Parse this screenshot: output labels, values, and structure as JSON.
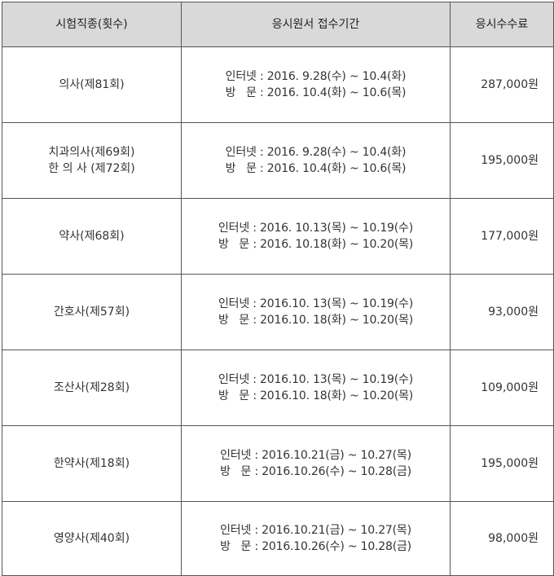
{
  "table": {
    "headers": [
      "시험직종(횟수)",
      "응시원서 접수기간",
      "응시수수료"
    ],
    "rows": [
      {
        "exam": [
          "의사(제81회)"
        ],
        "internet": "인터넷 : 2016. 9.28(수) ~ 10.4(화)",
        "visit": "방   문 : 2016. 10.4(화) ~ 10.6(목)",
        "fee": "287,000원"
      },
      {
        "exam": [
          "치과의사(제69회)",
          "한 의 사 (제72회)"
        ],
        "internet": "인터넷 : 2016. 9.28(수) ~ 10.4(화)",
        "visit": "방   문 : 2016. 10.4(화) ~ 10.6(목)",
        "fee": "195,000원"
      },
      {
        "exam": [
          "약사(제68회)"
        ],
        "internet": "인터넷 : 2016. 10.13(목) ~ 10.19(수)",
        "visit": "방   문 : 2016. 10.18(화) ~ 10.20(목)",
        "fee": "177,000원"
      },
      {
        "exam": [
          "간호사(제57회)"
        ],
        "internet": "인터넷 : 2016.10. 13(목) ~ 10.19(수)",
        "visit": "방   문 : 2016.10. 18(화) ~ 10.20(목)",
        "fee": "93,000원"
      },
      {
        "exam": [
          "조산사(제28회)"
        ],
        "internet": "인터넷 : 2016.10. 13(목) ~ 10.19(수)",
        "visit": "방   문 : 2016.10. 18(화) ~ 10.20(목)",
        "fee": "109,000원"
      },
      {
        "exam": [
          "한약사(제18회)"
        ],
        "internet": "인터넷 : 2016.10.21(금) ~ 10.27(목)",
        "visit": "방   문 : 2016.10.26(수) ~ 10.28(금)",
        "fee": "195,000원"
      },
      {
        "exam": [
          "영양사(제40회)"
        ],
        "internet": "인터넷 : 2016.10.21(금) ~ 10.27(목)",
        "visit": "방   문 : 2016.10.26(수) ~ 10.28(금)",
        "fee": "98,000원"
      }
    ]
  }
}
